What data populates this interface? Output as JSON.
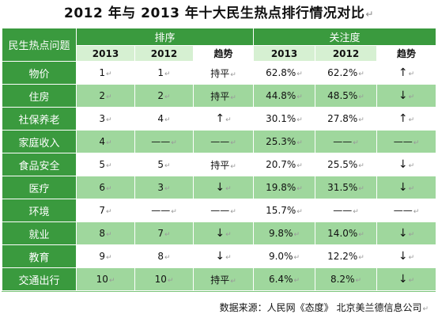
{
  "title": "2012 年与 2013 年十大民生热点排行情况对比",
  "title_mark": "↵",
  "header": {
    "row_label": "民生热点问题",
    "group_rank": "排序",
    "group_attention": "关注度",
    "cols": [
      "2013",
      "2012",
      "趋势",
      "2013",
      "2012",
      "趋势"
    ]
  },
  "rows": [
    {
      "name": "物价",
      "r2013": "1",
      "r2012": "1",
      "trend": "持平",
      "a2013": "62.8%",
      "a2012": "62.2%",
      "atrend": "↑"
    },
    {
      "name": "住房",
      "r2013": "2",
      "r2012": "2",
      "trend": "持平",
      "a2013": "44.8%",
      "a2012": "48.5%",
      "atrend": "↓"
    },
    {
      "name": "社保养老",
      "r2013": "3",
      "r2012": "4",
      "trend": "↑",
      "a2013": "30.1%",
      "a2012": "27.8%",
      "atrend": "↑"
    },
    {
      "name": "家庭收入",
      "r2013": "4",
      "r2012": "——",
      "trend": "——",
      "a2013": "25.3%",
      "a2012": "——",
      "atrend": "——"
    },
    {
      "name": "食品安全",
      "r2013": "5",
      "r2012": "5",
      "trend": "持平",
      "a2013": "20.7%",
      "a2012": "25.5%",
      "atrend": "↓"
    },
    {
      "name": "医疗",
      "r2013": "6",
      "r2012": "3",
      "trend": "↓",
      "a2013": "19.8%",
      "a2012": "31.5%",
      "atrend": "↓"
    },
    {
      "name": "环境",
      "r2013": "7",
      "r2012": "——",
      "trend": "——",
      "a2013": "15.7%",
      "a2012": "——",
      "atrend": "——"
    },
    {
      "name": "就业",
      "r2013": "8",
      "r2012": "7",
      "trend": "↓",
      "a2013": "9.8%",
      "a2012": "14.0%",
      "atrend": "↓"
    },
    {
      "name": "教育",
      "r2013": "9",
      "r2012": "8",
      "trend": "↓",
      "a2013": "9.0%",
      "a2012": "12.2%",
      "atrend": "↓"
    },
    {
      "name": "交通出行",
      "r2013": "10",
      "r2012": "10",
      "trend": "持平",
      "a2013": "6.4%",
      "a2012": "8.2%",
      "atrend": "↓"
    }
  ],
  "return_mark": "↵",
  "source": "数据来源：人民网《态度》 北京美兰德信息公司",
  "colors": {
    "header_green": "#3a9a3e",
    "row_green": "#9fd79d",
    "subheader_green": "#d6f0d2"
  }
}
